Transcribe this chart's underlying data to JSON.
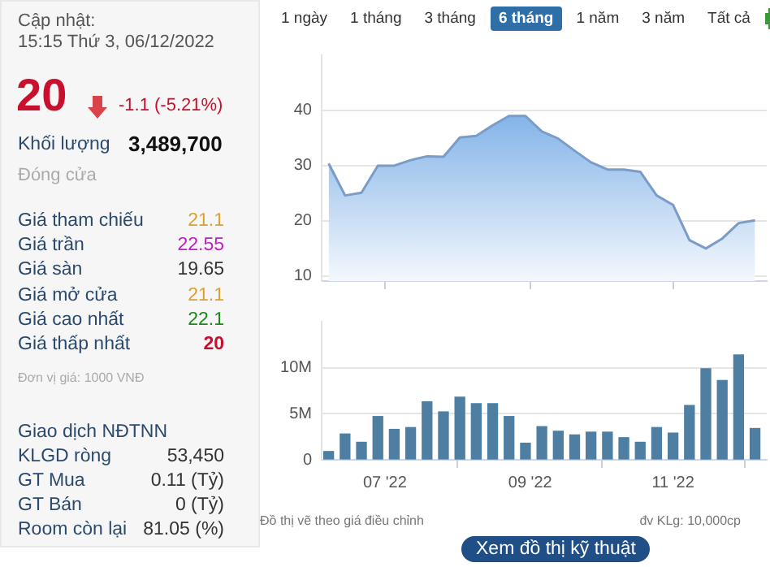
{
  "chart_data": [
    {
      "type": "other",
      "annotations": [
        "Cập nhật:",
        "15:15 Thứ 3, 06/12/2022",
        "20",
        "-1.1 (-5.21%)",
        "Khối lượng",
        "3,489,700",
        "Đóng cửa",
        "Giá tham chiếu",
        "21.1",
        "Giá trần",
        "22.55",
        "Giá sàn",
        "19.65",
        "Giá mở cửa",
        "21.1",
        "Giá cao nhất",
        "22.1",
        "Giá thấp nhất",
        "20",
        "Đơn vị giá: 1000 VNĐ",
        "Giao dịch NĐTNN",
        "KLGD ròng",
        "53,450",
        "GT Mua",
        "0.11 (Tỷ)",
        "GT Bán",
        "0 (Tỷ)",
        "Room còn lại",
        "81.05 (%)"
      ]
    },
    {
      "type": "area",
      "annotations": [
        "1 ngày",
        "1 tháng",
        "3 tháng",
        "6 tháng",
        "1 năm",
        "3 năm",
        "Tất cả"
      ],
      "x": [
        "2022-06-07",
        "2022-06-14",
        "2022-06-21",
        "2022-06-28",
        "2022-07-05",
        "2022-07-12",
        "2022-07-19",
        "2022-07-26",
        "2022-08-02",
        "2022-08-09",
        "2022-08-16",
        "2022-08-23",
        "2022-08-30",
        "2022-09-06",
        "2022-09-13",
        "2022-09-20",
        "2022-09-27",
        "2022-10-04",
        "2022-10-11",
        "2022-10-18",
        "2022-10-25",
        "2022-11-01",
        "2022-11-08",
        "2022-11-15",
        "2022-11-22",
        "2022-11-29",
        "2022-12-06"
      ],
      "series": [
        {
          "color": "#7a9cc6",
          "values": [
            30.4,
            24.6,
            25.1,
            30,
            30,
            31,
            31.7,
            31.6,
            35.1,
            35.4,
            37.3,
            39,
            39,
            36.2,
            34.9,
            32.7,
            30.6,
            29.3,
            29.3,
            28.9,
            24.6,
            22.9,
            16.5,
            15,
            16.8,
            19.6,
            20.1
          ]
        }
      ],
      "xlim": [
        "2022-06-04",
        "2022-12-11"
      ],
      "xticks": [
        {
          "value": "2022-07-01",
          "label": null
        },
        {
          "value": "2022-09-01",
          "label": null
        },
        {
          "value": "2022-11-01",
          "label": null
        }
      ],
      "ylim": [
        9.1,
        50
      ],
      "yticks": [
        10,
        20,
        30,
        40
      ],
      "grid": "y",
      "legend": false,
      "marker": "none",
      "tick_labels": "y"
    },
    {
      "type": "bar",
      "annotations": [
        "Đồ thị vẽ theo giá điều chỉnh",
        "đv KLg: 10,000cp",
        "Xem đồ thị kỹ thuật"
      ],
      "x": [
        "2022-06-07",
        "2022-06-14",
        "2022-06-21",
        "2022-06-28",
        "2022-07-05",
        "2022-07-12",
        "2022-07-19",
        "2022-07-26",
        "2022-08-02",
        "2022-08-09",
        "2022-08-16",
        "2022-08-23",
        "2022-08-30",
        "2022-09-06",
        "2022-09-13",
        "2022-09-20",
        "2022-09-27",
        "2022-10-04",
        "2022-10-11",
        "2022-10-18",
        "2022-10-25",
        "2022-11-01",
        "2022-11-08",
        "2022-11-15",
        "2022-11-22",
        "2022-11-29",
        "2022-12-06"
      ],
      "series": [
        {
          "color": "#4e7fa3",
          "values": [
            900000,
            2800000,
            1900000,
            4700000,
            3300000,
            3500000,
            6300000,
            5200000,
            6800000,
            6100000,
            6100000,
            4700000,
            1800000,
            3600000,
            3100000,
            2700000,
            3000000,
            3000000,
            2400000,
            1900000,
            3500000,
            2900000,
            5900000,
            9900000,
            8600000,
            11400000,
            3400000
          ]
        }
      ],
      "xlim": [
        "2022-06-04",
        "2022-12-11"
      ],
      "xticks": [
        {
          "value": "2022-07-01",
          "label": "07 '22"
        },
        {
          "value": "2022-09-01",
          "label": "09 '22"
        },
        {
          "value": "2022-11-01",
          "label": "11 '22"
        }
      ],
      "ylim": [
        0,
        15000000
      ],
      "yticks": [
        {
          "value": 0,
          "label": "0"
        },
        {
          "value": 5000000,
          "label": "5M"
        },
        {
          "value": 10000000,
          "label": "10M"
        }
      ],
      "grid": "y",
      "legend": false
    }
  ]
}
